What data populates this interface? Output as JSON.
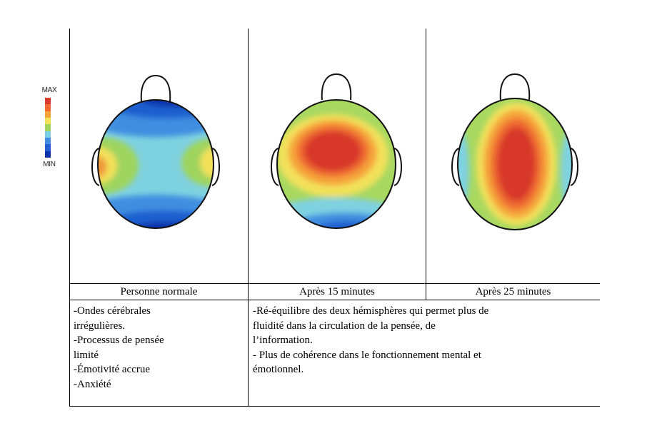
{
  "legend": {
    "max_label": "MAX",
    "min_label": "MIN",
    "colors": [
      "#d8382a",
      "#ee6a30",
      "#f5a33a",
      "#f3e15a",
      "#9fd45f",
      "#78cfe6",
      "#3f8ee0",
      "#1f5fcf",
      "#1032a8"
    ]
  },
  "columns": [
    {
      "caption": "Personne normale"
    },
    {
      "caption": "Après 15 minutes"
    },
    {
      "caption": "Après 25 minutes"
    }
  ],
  "descriptions": {
    "left": [
      "-Ondes cérébrales",
      "irrégulières.",
      "-Processus de pensée",
      "limité",
      "-Émotivité accrue",
      "-Anxiété"
    ],
    "right": [
      "-Ré-équilibre des deux hémisphères qui permet plus de",
      "fluidité dans la circulation de la pensée, de",
      "l’information.",
      "- Plus de cohérence dans le fonctionnement mental et",
      "émotionnel."
    ]
  }
}
